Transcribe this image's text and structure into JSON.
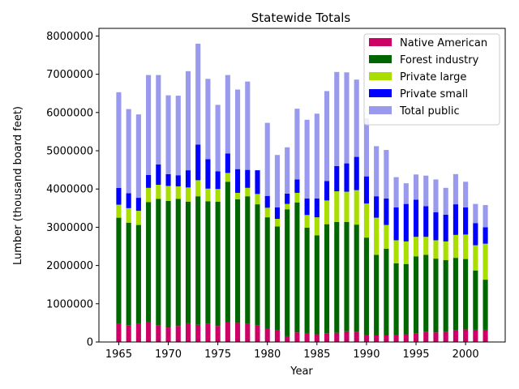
{
  "chart_data": {
    "type": "bar",
    "stacked": true,
    "title": "Statewide Totals",
    "xlabel": "Year",
    "ylabel": "Lumber (thousand board feet)",
    "xlim": [
      1963,
      2004
    ],
    "ylim": [
      0,
      8200000
    ],
    "xticks": [
      1965,
      1970,
      1975,
      1980,
      1985,
      1990,
      1995,
      2000
    ],
    "yticks": [
      0,
      1000000,
      2000000,
      3000000,
      4000000,
      5000000,
      6000000,
      7000000,
      8000000
    ],
    "legend_position": "upper right",
    "years": [
      1965,
      1966,
      1967,
      1968,
      1969,
      1970,
      1971,
      1972,
      1973,
      1974,
      1975,
      1976,
      1977,
      1978,
      1979,
      1980,
      1981,
      1982,
      1983,
      1984,
      1985,
      1986,
      1987,
      1988,
      1989,
      1990,
      1991,
      1992,
      1993,
      1994,
      1995,
      1996,
      1997,
      1998,
      1999,
      2000,
      2001,
      2002
    ],
    "series": [
      {
        "name": "Native American",
        "color": "#cc0066",
        "values": [
          470000,
          440000,
          470000,
          530000,
          430000,
          380000,
          420000,
          490000,
          450000,
          480000,
          420000,
          520000,
          500000,
          470000,
          430000,
          350000,
          300000,
          150000,
          250000,
          220000,
          200000,
          230000,
          240000,
          280000,
          260000,
          190000,
          180000,
          180000,
          190000,
          200000,
          230000,
          270000,
          250000,
          260000,
          310000,
          330000,
          320000,
          320000
        ]
      },
      {
        "name": "Forest industry",
        "color": "#006600",
        "values": [
          2780000,
          2680000,
          2590000,
          3130000,
          3310000,
          3310000,
          3320000,
          3180000,
          3360000,
          3200000,
          3250000,
          3670000,
          3230000,
          3340000,
          3170000,
          2910000,
          2720000,
          3320000,
          3400000,
          2770000,
          2590000,
          2850000,
          2900000,
          2860000,
          2810000,
          2540000,
          2100000,
          2260000,
          1870000,
          1840000,
          2010000,
          2010000,
          1930000,
          1880000,
          1890000,
          1840000,
          1550000,
          1310000
        ]
      },
      {
        "name": "Private large",
        "color": "#aadd00",
        "values": [
          340000,
          380000,
          370000,
          370000,
          370000,
          390000,
          330000,
          370000,
          420000,
          330000,
          330000,
          230000,
          170000,
          220000,
          270000,
          250000,
          200000,
          140000,
          250000,
          330000,
          470000,
          620000,
          800000,
          790000,
          900000,
          890000,
          970000,
          620000,
          600000,
          590000,
          510000,
          470000,
          480000,
          490000,
          600000,
          640000,
          660000,
          940000
        ]
      },
      {
        "name": "Private small",
        "color": "#0000ff",
        "values": [
          440000,
          390000,
          340000,
          340000,
          530000,
          310000,
          290000,
          450000,
          930000,
          770000,
          460000,
          510000,
          620000,
          470000,
          620000,
          310000,
          300000,
          270000,
          350000,
          430000,
          490000,
          510000,
          660000,
          740000,
          870000,
          710000,
          560000,
          690000,
          860000,
          980000,
          970000,
          800000,
          730000,
          700000,
          800000,
          710000,
          580000,
          430000
        ]
      },
      {
        "name": "Total public",
        "color": "#9999ee",
        "values": [
          2500000,
          2200000,
          2180000,
          2610000,
          2340000,
          2060000,
          2080000,
          2590000,
          2640000,
          2100000,
          1740000,
          2050000,
          2080000,
          2310000,
          0,
          1910000,
          1370000,
          1210000,
          1850000,
          2060000,
          2220000,
          2350000,
          2460000,
          2380000,
          2020000,
          1520000,
          1310000,
          1270000,
          790000,
          540000,
          660000,
          800000,
          860000,
          700000,
          790000,
          670000,
          500000,
          580000
        ]
      }
    ]
  }
}
